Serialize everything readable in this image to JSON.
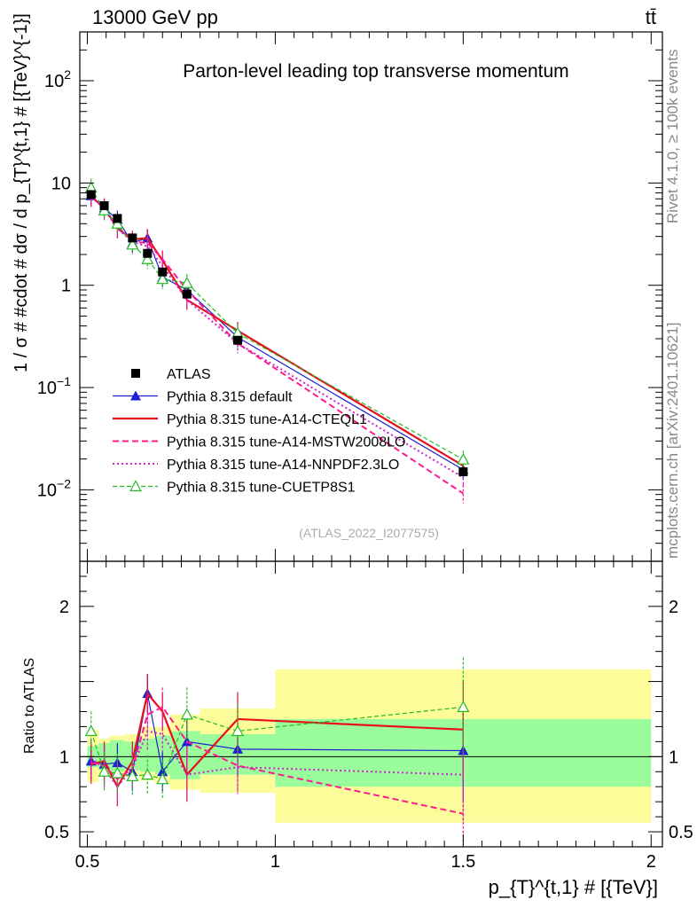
{
  "header": {
    "energy_label": "13000 GeV pp",
    "process_label": "tt̄",
    "side_label_top": "Rivet 4.1.0, ≥ 100k events",
    "side_label_bottom": "mcplots.cern.ch [arXiv:2401.10621]",
    "analysis_id": "(ATLAS_2022_I2077575)"
  },
  "chart_data": [
    {
      "type": "line",
      "panel": "main",
      "title": "Parton-level leading top transverse momentum",
      "ylabel": "1 / σ # #cdot # dσ / d p_{T}^{t,1} # [{TeV}^{-1}]",
      "xlabel": "p_{T}^{t,1} # [{TeV}]",
      "xlim": [
        0.48,
        2.03
      ],
      "ylim": [
        0.002,
        300
      ],
      "yscale": "log",
      "y_ticks": [
        "10^{-2}",
        "10^{-1}",
        "1",
        "10",
        "10^{2}"
      ],
      "x": [
        0.51,
        0.545,
        0.58,
        0.62,
        0.66,
        0.7,
        0.765,
        0.9,
        1.5
      ],
      "series": [
        {
          "name": "ATLAS",
          "style": "data",
          "color": "#000000",
          "values": [
            7.7,
            6.0,
            4.5,
            2.9,
            2.05,
            1.35,
            0.82,
            0.29,
            0.015
          ]
        },
        {
          "name": "Pythia 8.315 default",
          "style": "solid",
          "color": "#1f1fd6",
          "marker": "triangle",
          "values": [
            7.5,
            5.7,
            4.4,
            2.6,
            2.9,
            1.2,
            0.9,
            0.31,
            0.0157
          ]
        },
        {
          "name": "Pythia 8.315 tune-A14-CTEQL1",
          "style": "solid-thick",
          "color": "#e8101b",
          "values": [
            7.3,
            5.8,
            3.6,
            2.8,
            2.9,
            1.75,
            0.72,
            0.36,
            0.0172
          ]
        },
        {
          "name": "Pythia 8.315 tune-A14-MSTW2008LO",
          "style": "dashed",
          "color": "#ff1a8c",
          "values": [
            7.4,
            5.6,
            3.8,
            2.65,
            2.6,
            1.8,
            0.9,
            0.27,
            0.0092
          ]
        },
        {
          "name": "Pythia 8.315 tune-A14-NNPDF2.3LO",
          "style": "dotted",
          "color": "#d020d0",
          "values": [
            7.6,
            5.5,
            3.6,
            2.65,
            2.4,
            1.55,
            0.72,
            0.27,
            0.0132
          ]
        },
        {
          "name": "Pythia 8.315 tune-CUETP8S1",
          "style": "dashed-thin",
          "color": "#22bb22",
          "marker": "open-triangle",
          "values": [
            9.0,
            5.4,
            4.0,
            2.5,
            1.8,
            1.15,
            1.05,
            0.34,
            0.0198
          ]
        }
      ]
    },
    {
      "type": "line",
      "panel": "ratio",
      "ylabel": "Ratio to ATLAS",
      "xlabel": "p_{T}^{t,1} # [{TeV}]",
      "xlim": [
        0.48,
        2.03
      ],
      "ylim": [
        0.4,
        2.3
      ],
      "y_ticks": [
        "0.5",
        "1",
        "2"
      ],
      "x_ticks": [
        "0.5",
        "1",
        "1.5",
        "2"
      ],
      "x": [
        0.51,
        0.545,
        0.58,
        0.62,
        0.66,
        0.7,
        0.765,
        0.9,
        1.5
      ],
      "bands": [
        {
          "name": "stat",
          "color": "#9afc9a",
          "bins": [
            [
              0.5,
              0.53,
              0.93,
              1.07
            ],
            [
              0.53,
              0.56,
              0.91,
              1.09
            ],
            [
              0.56,
              0.6,
              0.9,
              1.11
            ],
            [
              0.6,
              0.64,
              0.91,
              1.1
            ],
            [
              0.64,
              0.68,
              0.9,
              1.12
            ],
            [
              0.68,
              0.72,
              0.88,
              1.14
            ],
            [
              0.72,
              0.8,
              0.85,
              1.17
            ],
            [
              0.8,
              1.0,
              0.88,
              1.15
            ],
            [
              1.0,
              2.0,
              0.8,
              1.25
            ]
          ]
        },
        {
          "name": "total",
          "color": "#fcfc9a",
          "bins": [
            [
              0.5,
              0.53,
              0.83,
              1.18
            ],
            [
              0.53,
              0.56,
              0.88,
              1.12
            ],
            [
              0.56,
              0.6,
              0.86,
              1.14
            ],
            [
              0.6,
              0.64,
              0.87,
              1.15
            ],
            [
              0.64,
              0.68,
              0.84,
              1.2
            ],
            [
              0.68,
              0.72,
              0.82,
              1.2
            ],
            [
              0.72,
              0.8,
              0.78,
              1.28
            ],
            [
              0.8,
              1.0,
              0.76,
              1.32
            ],
            [
              1.0,
              2.0,
              0.56,
              1.58
            ]
          ]
        }
      ],
      "series": [
        {
          "name": "Pythia 8.315 default",
          "style": "solid",
          "color": "#1f1fd6",
          "marker": "triangle",
          "values": [
            0.97,
            0.95,
            0.96,
            0.9,
            1.42,
            0.9,
            1.1,
            1.05,
            1.04
          ]
        },
        {
          "name": "Pythia 8.315 tune-A14-CTEQL1",
          "style": "solid-thick",
          "color": "#e8101b",
          "values": [
            0.95,
            0.97,
            0.8,
            0.97,
            1.42,
            1.3,
            0.88,
            1.25,
            1.18
          ]
        },
        {
          "name": "Pythia 8.315 tune-A14-MSTW2008LO",
          "style": "dashed",
          "color": "#ff1a8c",
          "values": [
            0.96,
            0.94,
            0.85,
            0.92,
            1.28,
            1.33,
            1.1,
            0.94,
            0.62
          ]
        },
        {
          "name": "Pythia 8.315 tune-A14-NNPDF2.3LO",
          "style": "dotted",
          "color": "#d020d0",
          "values": [
            0.99,
            0.92,
            0.8,
            0.92,
            1.17,
            1.15,
            0.88,
            0.93,
            0.88
          ]
        },
        {
          "name": "Pythia 8.315 tune-CUETP8S1",
          "style": "dashed-thin",
          "color": "#22bb22",
          "marker": "open-triangle",
          "values": [
            1.17,
            0.9,
            0.89,
            0.87,
            0.88,
            0.85,
            1.28,
            1.17,
            1.33
          ]
        }
      ]
    }
  ]
}
